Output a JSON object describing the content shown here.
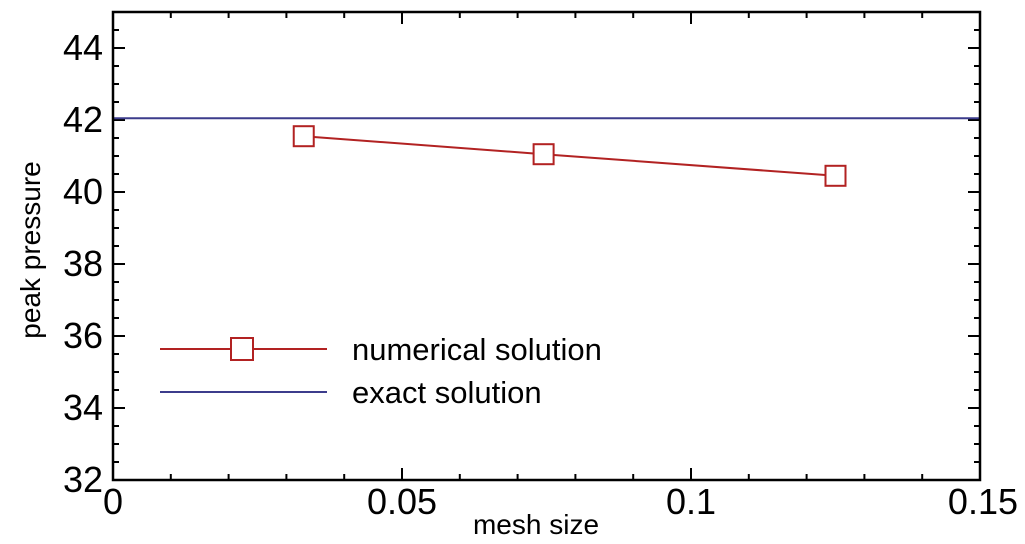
{
  "chart_data": {
    "type": "line",
    "xlabel": "mesh size",
    "ylabel": "peak pressure",
    "xlim": [
      0,
      0.15
    ],
    "ylim": [
      32,
      45
    ],
    "xticks": [
      0,
      0.05,
      0.1,
      0.15
    ],
    "xtick_labels": [
      "0",
      "0.05",
      "0.1",
      "0.15"
    ],
    "yticks": [
      32,
      34,
      36,
      38,
      40,
      42,
      44
    ],
    "ytick_labels": [
      "32",
      "34",
      "36",
      "38",
      "40",
      "42",
      "44"
    ],
    "grid": false,
    "legend_position": "bottom-left",
    "series": [
      {
        "name": "numerical solution",
        "color": "#b22222",
        "marker": "open-square",
        "x": [
          0.033,
          0.0745,
          0.125
        ],
        "y": [
          41.55,
          41.05,
          40.45
        ]
      },
      {
        "name": "exact solution",
        "color": "#3c3c8c",
        "marker": "none",
        "x": [
          0,
          0.15
        ],
        "y": [
          42.05,
          42.05
        ]
      }
    ]
  }
}
